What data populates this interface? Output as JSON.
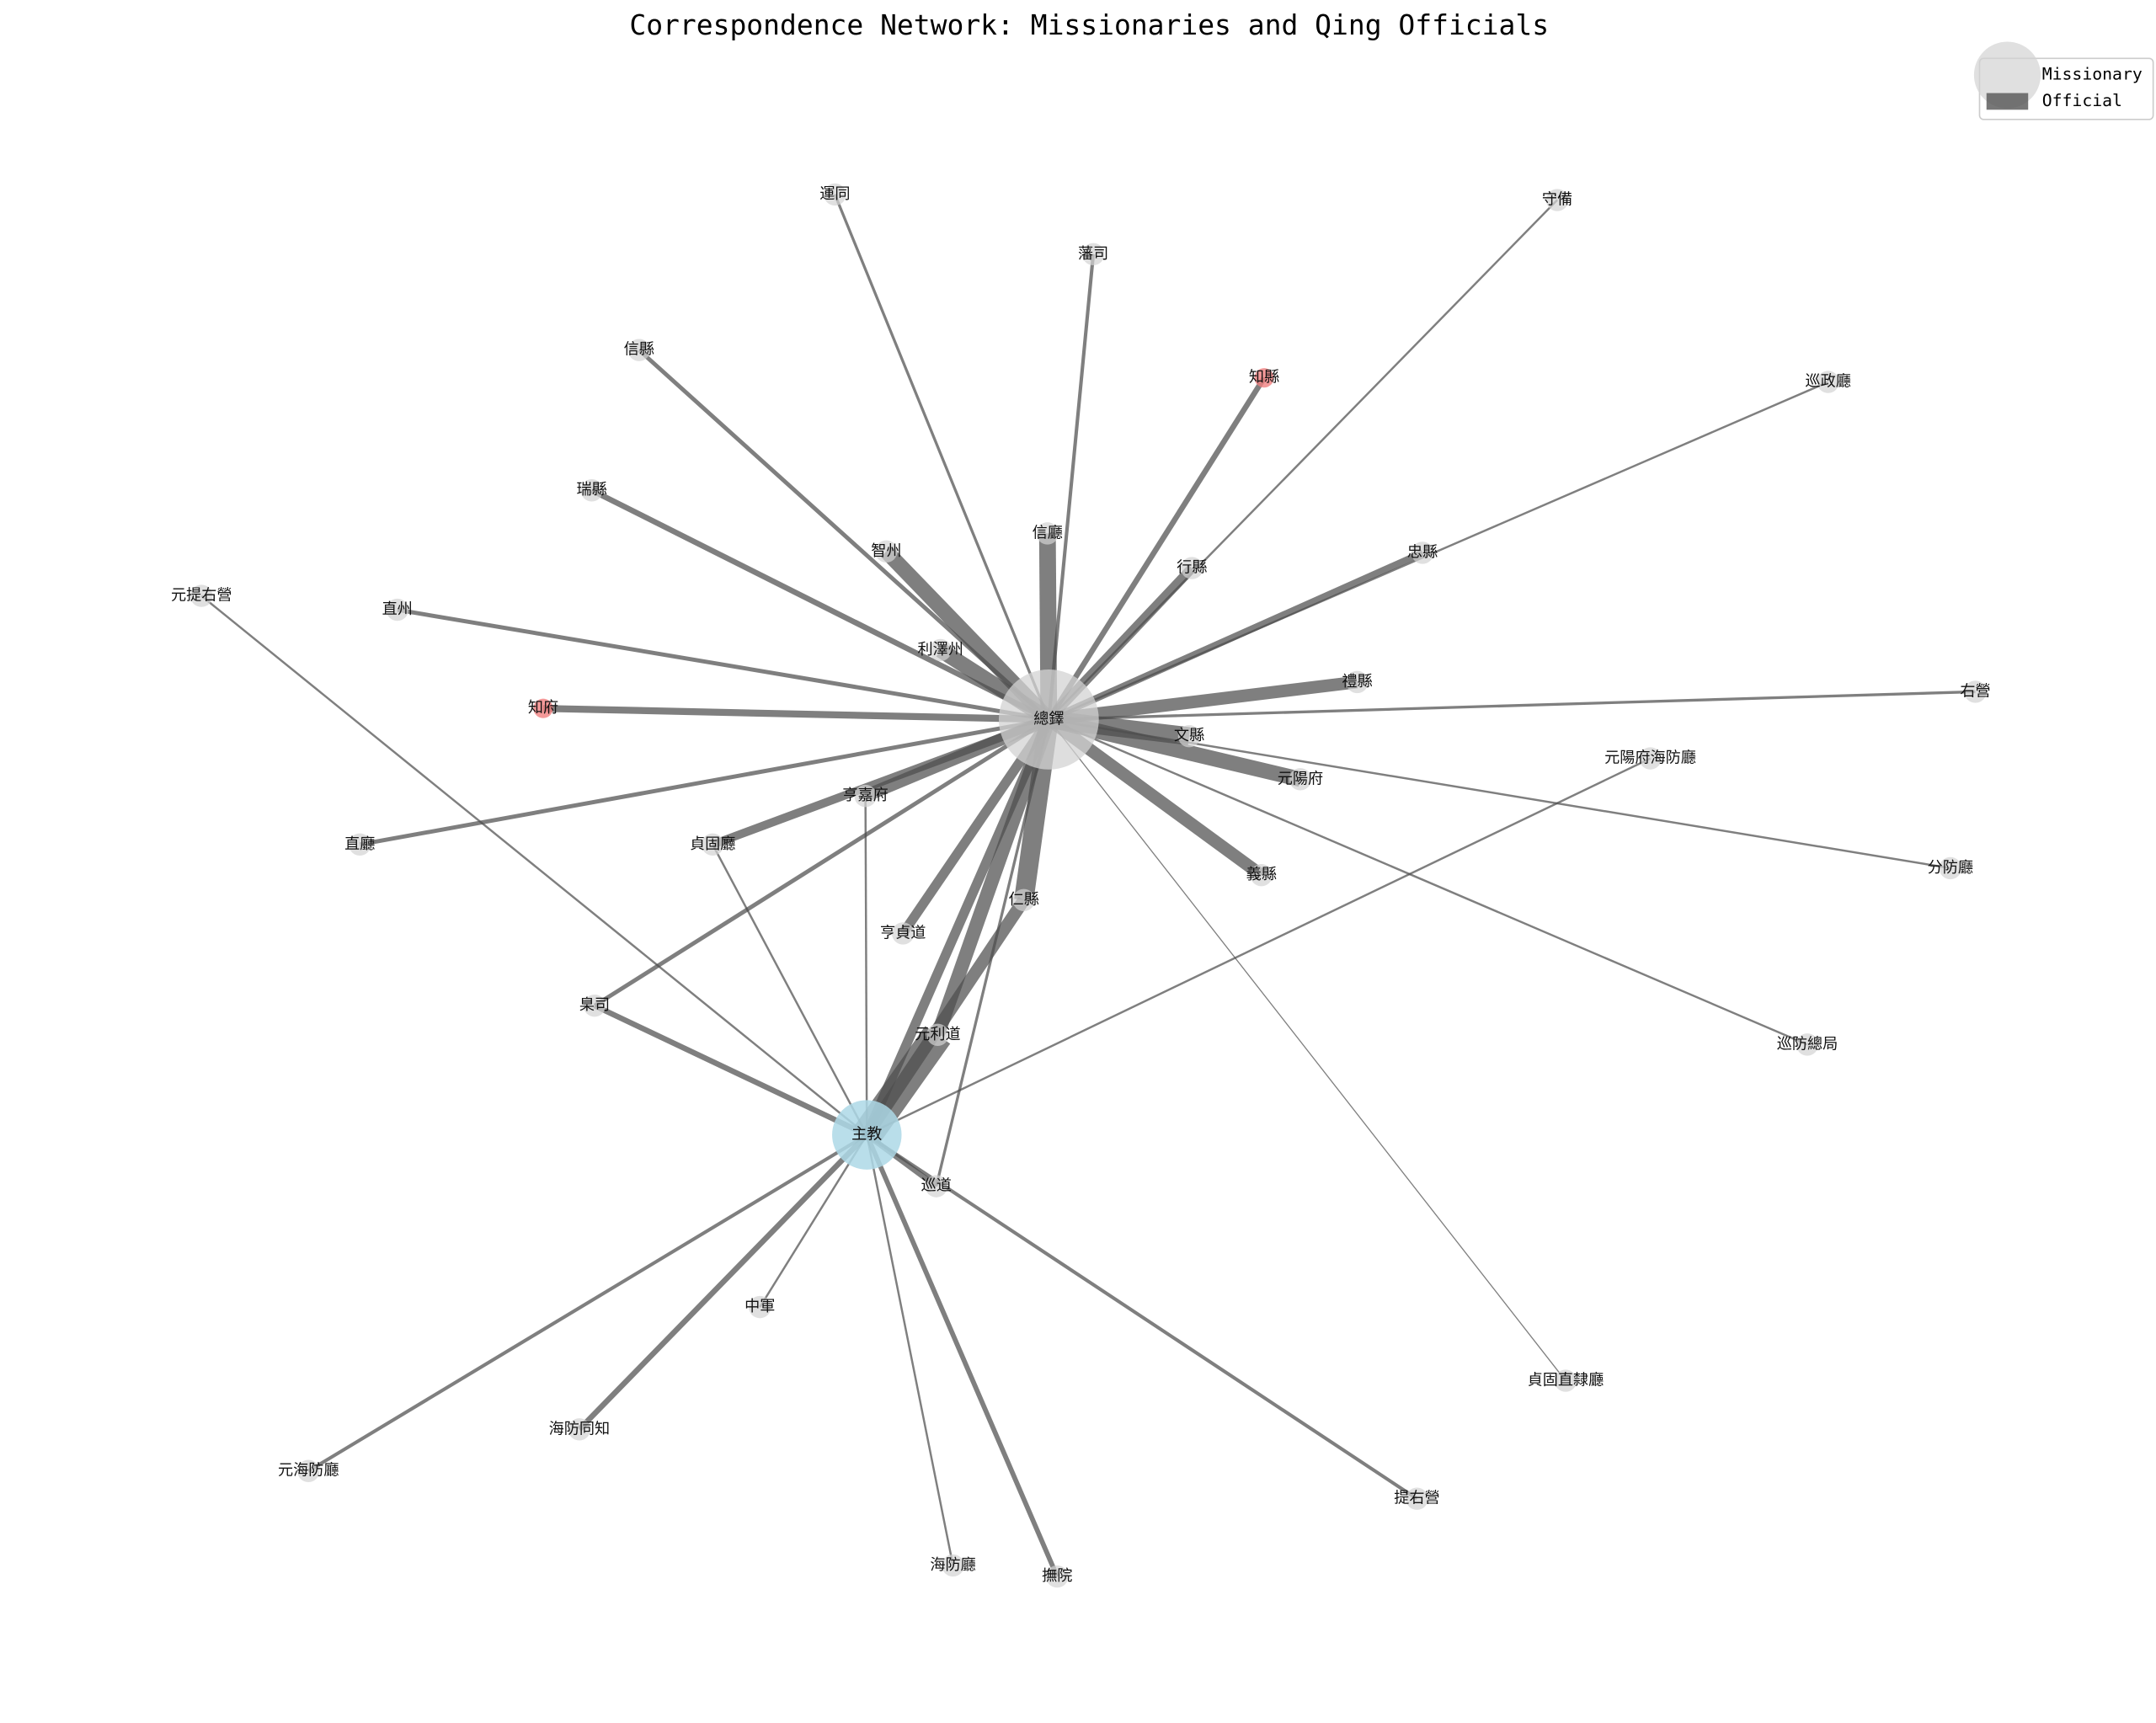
{
  "title": "Correspondence Network: Missionaries and Qing Officials",
  "legend": [
    "Missionary",
    "Official"
  ],
  "nodes": [
    {
      "label": "總鐸"
    },
    {
      "label": "主教"
    },
    {
      "label": "運同"
    },
    {
      "label": "藩司"
    },
    {
      "label": "守備"
    },
    {
      "label": "信縣"
    },
    {
      "label": "知縣"
    },
    {
      "label": "巡政廳"
    },
    {
      "label": "瑞縣"
    },
    {
      "label": "信廳"
    },
    {
      "label": "智州"
    },
    {
      "label": "行縣"
    },
    {
      "label": "忠縣"
    },
    {
      "label": "元提右營"
    },
    {
      "label": "直州"
    },
    {
      "label": "利澤州"
    },
    {
      "label": "禮縣"
    },
    {
      "label": "右營"
    },
    {
      "label": "知府"
    },
    {
      "label": "文縣"
    },
    {
      "label": "元陽府海防廳"
    },
    {
      "label": "元陽府"
    },
    {
      "label": "亨嘉府"
    },
    {
      "label": "直廳"
    },
    {
      "label": "貞固廳"
    },
    {
      "label": "分防廳"
    },
    {
      "label": "義縣"
    },
    {
      "label": "仁縣"
    },
    {
      "label": "亨貞道"
    },
    {
      "label": "臬司"
    },
    {
      "label": "元利道"
    },
    {
      "label": "巡防總局"
    },
    {
      "label": "巡道"
    },
    {
      "label": "中軍"
    },
    {
      "label": "貞固直隸廳"
    },
    {
      "label": "海防同知"
    },
    {
      "label": "元海防廳"
    },
    {
      "label": "提右營"
    },
    {
      "label": "海防廳"
    },
    {
      "label": "撫院"
    }
  ]
}
